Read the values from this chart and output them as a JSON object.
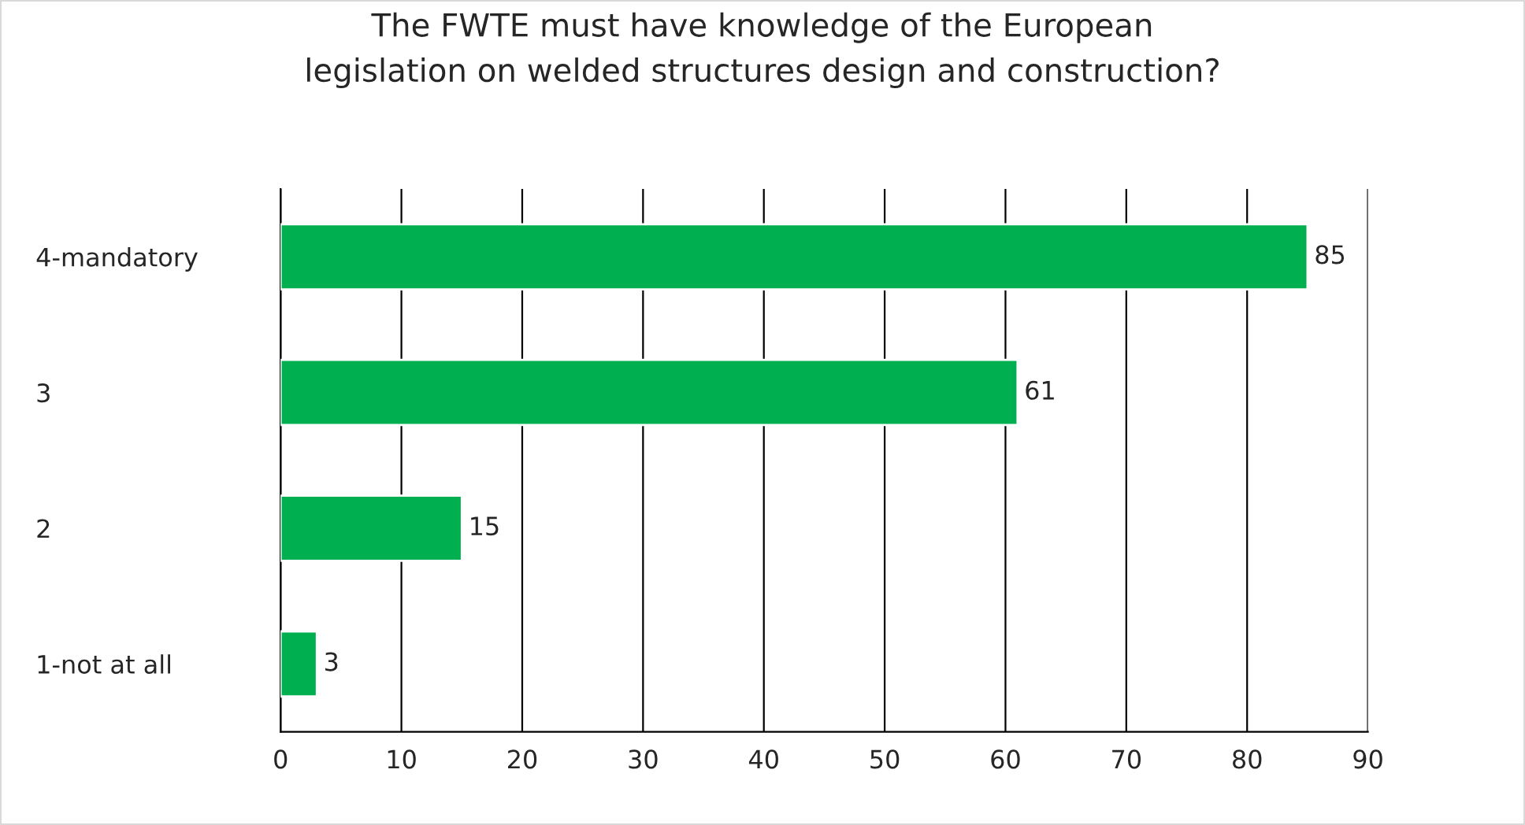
{
  "chart_data": {
    "type": "bar",
    "orientation": "horizontal",
    "title": "The FWTE must have knowledge of the European\nlegislation on welded structures design and construction?",
    "categories": [
      "4-mandatory",
      "3",
      "2",
      "1-not at all"
    ],
    "values": [
      85,
      61,
      15,
      3
    ],
    "color": "#00b050",
    "xlim": [
      0,
      90
    ],
    "xticks": [
      0,
      10,
      20,
      30,
      40,
      50,
      60,
      70,
      80,
      90
    ],
    "grid": "x",
    "data_labels": true
  }
}
